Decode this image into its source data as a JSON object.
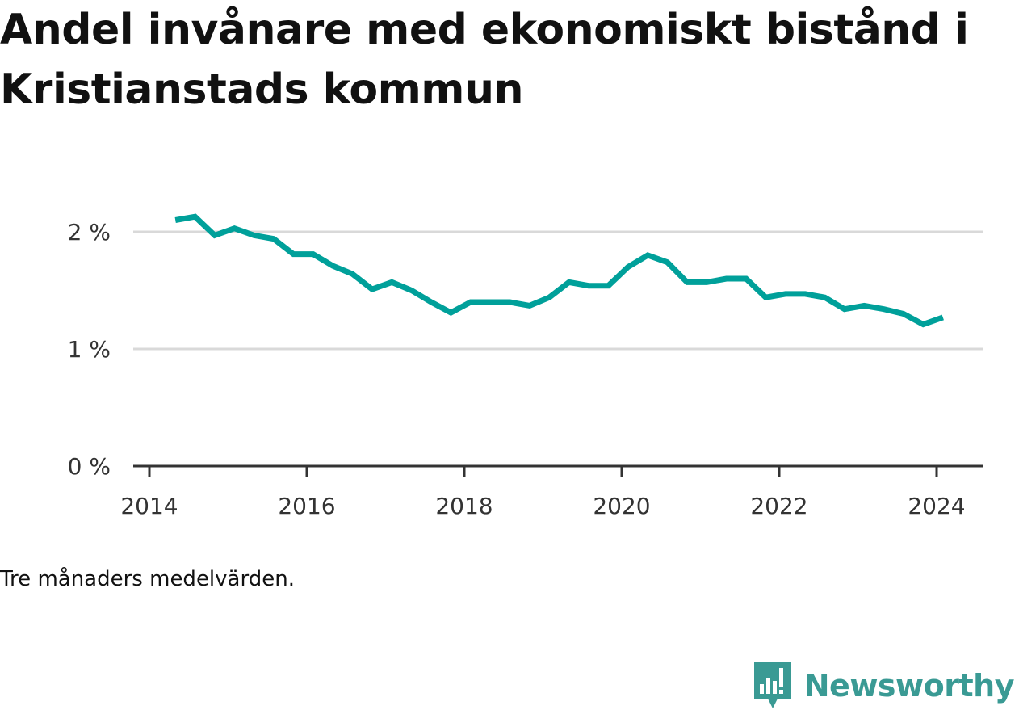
{
  "title": "Andel invånare med ekonomiskt bistånd i Kristianstads kommun",
  "note": "Tre månaders medelvärden.",
  "brand": {
    "name": "Newsworthy",
    "icon": "bar-chart-bubble-icon",
    "color": "#3a9a94"
  },
  "colors": {
    "line": "#00a09a",
    "grid": "#d9d9d9",
    "axis": "#333333"
  },
  "chart_data": {
    "type": "line",
    "title": "Andel invånare med ekonomiskt bistånd i Kristianstads kommun",
    "xlabel": "",
    "ylabel": "",
    "xlim": [
      2014,
      2024.25
    ],
    "ylim": [
      0,
      2.2
    ],
    "x_ticks": [
      2014,
      2016,
      2018,
      2020,
      2022,
      2024
    ],
    "x_tick_labels": [
      "2014",
      "2016",
      "2018",
      "2020",
      "2022",
      "2024"
    ],
    "y_ticks": [
      0,
      1,
      2
    ],
    "y_tick_labels": [
      "0 %",
      "1 %",
      "2 %"
    ],
    "grid": true,
    "series": [
      {
        "x": [
          2014.33,
          2014.58,
          2014.83,
          2015.08,
          2015.33,
          2015.58,
          2015.83,
          2016.08,
          2016.33,
          2016.58,
          2016.83,
          2017.08,
          2017.33,
          2017.58,
          2017.83,
          2018.08,
          2018.33,
          2018.58,
          2018.83,
          2019.08,
          2019.33,
          2019.58,
          2019.83,
          2020.08,
          2020.33,
          2020.58,
          2020.83,
          2021.08,
          2021.33,
          2021.58,
          2021.83,
          2022.08,
          2022.33,
          2022.58,
          2022.83,
          2023.08,
          2023.33,
          2023.58,
          2023.83,
          2024.08
        ],
        "values": [
          2.1,
          2.13,
          1.97,
          2.03,
          1.97,
          1.94,
          1.81,
          1.81,
          1.71,
          1.64,
          1.51,
          1.57,
          1.5,
          1.4,
          1.31,
          1.4,
          1.4,
          1.4,
          1.37,
          1.44,
          1.57,
          1.54,
          1.54,
          1.7,
          1.8,
          1.74,
          1.57,
          1.57,
          1.6,
          1.6,
          1.44,
          1.47,
          1.47,
          1.44,
          1.34,
          1.37,
          1.34,
          1.3,
          1.21,
          1.27
        ]
      }
    ]
  }
}
